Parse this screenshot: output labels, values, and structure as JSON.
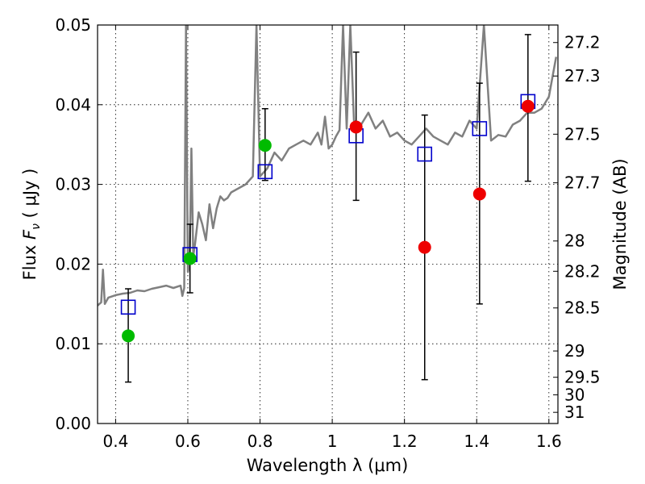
{
  "chart_data": {
    "type": "scatter",
    "xlabel": "Wavelength  λ (μm)",
    "ylabel": "Flux  F_ν  ( μJy )",
    "ylabel_right": "Magnitude (AB)",
    "xlim": [
      0.35,
      1.625
    ],
    "ylim": [
      0.0,
      0.05
    ],
    "grid": true,
    "x_ticks": [
      0.4,
      0.6,
      0.8,
      1.0,
      1.2,
      1.4,
      1.6
    ],
    "x_tick_labels": [
      "0.4",
      "0.6",
      "0.8",
      "1",
      "1.2",
      "1.4",
      "1.6"
    ],
    "y_ticks": [
      0.0,
      0.01,
      0.02,
      0.03,
      0.04,
      0.05
    ],
    "y_tick_labels": [
      "0.00",
      "0.01",
      "0.02",
      "0.03",
      "0.04",
      "0.05"
    ],
    "mag_ticks": [
      {
        "label": "27.2",
        "flux": 0.0478
      },
      {
        "label": "27.3",
        "flux": 0.0436
      },
      {
        "label": "27.5",
        "flux": 0.0363
      },
      {
        "label": "27.7",
        "flux": 0.0302
      },
      {
        "label": "28",
        "flux": 0.0229
      },
      {
        "label": "28.2",
        "flux": 0.0191
      },
      {
        "label": "28.5",
        "flux": 0.0145
      },
      {
        "label": "29",
        "flux": 0.0091
      },
      {
        "label": "29.5",
        "flux": 0.0058
      },
      {
        "label": "30",
        "flux": 0.0036
      },
      {
        "label": "31",
        "flux": 0.0014
      }
    ],
    "series": [
      {
        "kind": "model_spectrum",
        "color": "#808080",
        "points": [
          [
            0.35,
            0.0148
          ],
          [
            0.36,
            0.0152
          ],
          [
            0.365,
            0.0193
          ],
          [
            0.37,
            0.015
          ],
          [
            0.38,
            0.0158
          ],
          [
            0.4,
            0.0161
          ],
          [
            0.42,
            0.0163
          ],
          [
            0.44,
            0.0164
          ],
          [
            0.46,
            0.0167
          ],
          [
            0.48,
            0.0166
          ],
          [
            0.5,
            0.0169
          ],
          [
            0.52,
            0.0171
          ],
          [
            0.54,
            0.0173
          ],
          [
            0.56,
            0.017
          ],
          [
            0.58,
            0.0173
          ],
          [
            0.585,
            0.016
          ],
          [
            0.59,
            0.017
          ],
          [
            0.595,
            0.05
          ],
          [
            0.6,
            0.019
          ],
          [
            0.605,
            0.02
          ],
          [
            0.61,
            0.0345
          ],
          [
            0.615,
            0.021
          ],
          [
            0.62,
            0.0225
          ],
          [
            0.63,
            0.0265
          ],
          [
            0.64,
            0.025
          ],
          [
            0.65,
            0.023
          ],
          [
            0.66,
            0.0275
          ],
          [
            0.67,
            0.0245
          ],
          [
            0.68,
            0.027
          ],
          [
            0.69,
            0.0285
          ],
          [
            0.7,
            0.028
          ],
          [
            0.71,
            0.0283
          ],
          [
            0.72,
            0.029
          ],
          [
            0.74,
            0.0295
          ],
          [
            0.76,
            0.03
          ],
          [
            0.78,
            0.031
          ],
          [
            0.79,
            0.05
          ],
          [
            0.8,
            0.031
          ],
          [
            0.82,
            0.032
          ],
          [
            0.84,
            0.034
          ],
          [
            0.86,
            0.033
          ],
          [
            0.88,
            0.0345
          ],
          [
            0.9,
            0.035
          ],
          [
            0.92,
            0.0355
          ],
          [
            0.94,
            0.035
          ],
          [
            0.96,
            0.0365
          ],
          [
            0.97,
            0.035
          ],
          [
            0.98,
            0.0385
          ],
          [
            0.99,
            0.0345
          ],
          [
            1.0,
            0.035
          ],
          [
            1.01,
            0.036
          ],
          [
            1.02,
            0.0368
          ],
          [
            1.03,
            0.05
          ],
          [
            1.04,
            0.037
          ],
          [
            1.05,
            0.05
          ],
          [
            1.06,
            0.038
          ],
          [
            1.08,
            0.0375
          ],
          [
            1.1,
            0.039
          ],
          [
            1.12,
            0.037
          ],
          [
            1.14,
            0.038
          ],
          [
            1.16,
            0.036
          ],
          [
            1.18,
            0.0365
          ],
          [
            1.2,
            0.0355
          ],
          [
            1.22,
            0.035
          ],
          [
            1.24,
            0.036
          ],
          [
            1.26,
            0.037
          ],
          [
            1.28,
            0.036
          ],
          [
            1.3,
            0.0355
          ],
          [
            1.32,
            0.035
          ],
          [
            1.34,
            0.0365
          ],
          [
            1.36,
            0.036
          ],
          [
            1.38,
            0.038
          ],
          [
            1.4,
            0.037
          ],
          [
            1.42,
            0.05
          ],
          [
            1.44,
            0.0355
          ],
          [
            1.46,
            0.0362
          ],
          [
            1.48,
            0.036
          ],
          [
            1.5,
            0.0375
          ],
          [
            1.52,
            0.038
          ],
          [
            1.54,
            0.039
          ],
          [
            1.56,
            0.039
          ],
          [
            1.58,
            0.0395
          ],
          [
            1.6,
            0.041
          ],
          [
            1.62,
            0.046
          ]
        ]
      },
      {
        "kind": "model_photometry",
        "marker": "open-square",
        "color": "#0000cc",
        "points": [
          [
            0.435,
            0.0146
          ],
          [
            0.606,
            0.0212
          ],
          [
            0.814,
            0.0316
          ],
          [
            1.066,
            0.0361
          ],
          [
            1.256,
            0.0338
          ],
          [
            1.408,
            0.037
          ],
          [
            1.542,
            0.0404
          ]
        ]
      },
      {
        "kind": "observed",
        "marker": "filled-circle",
        "points": [
          {
            "x": 0.435,
            "y": 0.011,
            "err_low": 0.0052,
            "err_high": 0.0169,
            "color": "#00bb00"
          },
          {
            "x": 0.606,
            "y": 0.0207,
            "err_low": 0.0164,
            "err_high": 0.025,
            "color": "#00bb00"
          },
          {
            "x": 0.814,
            "y": 0.0349,
            "err_low": 0.0305,
            "err_high": 0.0395,
            "color": "#00bb00"
          },
          {
            "x": 1.066,
            "y": 0.0372,
            "err_low": 0.028,
            "err_high": 0.0466,
            "color": "#ee0000"
          },
          {
            "x": 1.256,
            "y": 0.0221,
            "err_low": 0.0055,
            "err_high": 0.0387,
            "color": "#ee0000"
          },
          {
            "x": 1.408,
            "y": 0.0288,
            "err_low": 0.015,
            "err_high": 0.0427,
            "color": "#ee0000"
          },
          {
            "x": 1.542,
            "y": 0.0398,
            "err_low": 0.0304,
            "err_high": 0.0488,
            "color": "#ee0000"
          }
        ]
      }
    ]
  }
}
